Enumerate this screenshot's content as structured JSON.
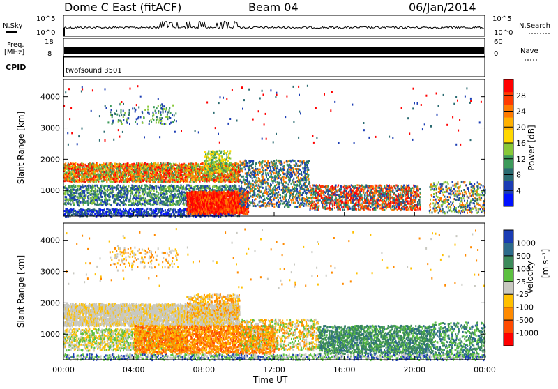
{
  "header": {
    "station": "Dome C East (fitACF)",
    "beam": "Beam 04",
    "date": "06/Jan/2014"
  },
  "top_panels": {
    "nsky_label": "N.Sky",
    "nsearch_label": "N.Search",
    "noise_tick_hi": "10^5",
    "noise_tick_lo": "10^0",
    "noise_tick_hi_r": "10^5",
    "noise_tick_lo_r": "10^0",
    "freq_label": "Freq.",
    "freq_unit": "[MHz]",
    "freq_tick_hi": "18",
    "freq_tick_lo": "8",
    "nave_label": "Nave",
    "nave_tick_hi": "60",
    "nave_tick_lo": "0",
    "cpid_label": "CPID",
    "cpid_value": "twofsound 3501"
  },
  "chart_data": [
    {
      "type": "heatmap",
      "title": "",
      "xlabel": "Time UT",
      "ylabel": "Slant Range [km]",
      "colorbar_label": "Power [dB]",
      "colorbar_ticks": [
        "28",
        "24",
        "20",
        "16",
        "12",
        "8",
        "4"
      ],
      "colorbar_colors": [
        "#ff0000",
        "#ff3a00",
        "#ff7a00",
        "#ffb000",
        "#ffd800",
        "#88c838",
        "#3c9a5a",
        "#2a6a70",
        "#1a3cb4",
        "#0010ff"
      ],
      "xticks": [
        "00:00",
        "04:00",
        "08:00",
        "12:00",
        "16:00",
        "20:00",
        "00:00"
      ],
      "yticks": [
        "1000",
        "2000",
        "3000",
        "4000"
      ],
      "x_range_hours": [
        0,
        24
      ],
      "y_range_km": [
        180,
        4550
      ]
    },
    {
      "type": "heatmap",
      "title": "",
      "xlabel": "Time UT",
      "ylabel": "Slant Range [km]",
      "colorbar_label": "Velocity",
      "colorbar_unit": "[m s⁻¹]",
      "colorbar_ticks": [
        "1000",
        "500",
        "100",
        "25",
        "-25",
        "-100",
        "-500",
        "-1000"
      ],
      "colorbar_colors": [
        "#1a3cb4",
        "#2c6a8a",
        "#3c8a5a",
        "#5cc040",
        "#c8c8c0",
        "#ffc000",
        "#ff8a00",
        "#ff4a00",
        "#ff0000"
      ],
      "xticks": [
        "00:00",
        "04:00",
        "08:00",
        "12:00",
        "16:00",
        "20:00",
        "00:00"
      ],
      "yticks": [
        "1000",
        "2000",
        "3000",
        "4000"
      ],
      "x_range_hours": [
        0,
        24
      ],
      "y_range_km": [
        180,
        4550
      ]
    }
  ],
  "x_axis_title": "Time UT"
}
